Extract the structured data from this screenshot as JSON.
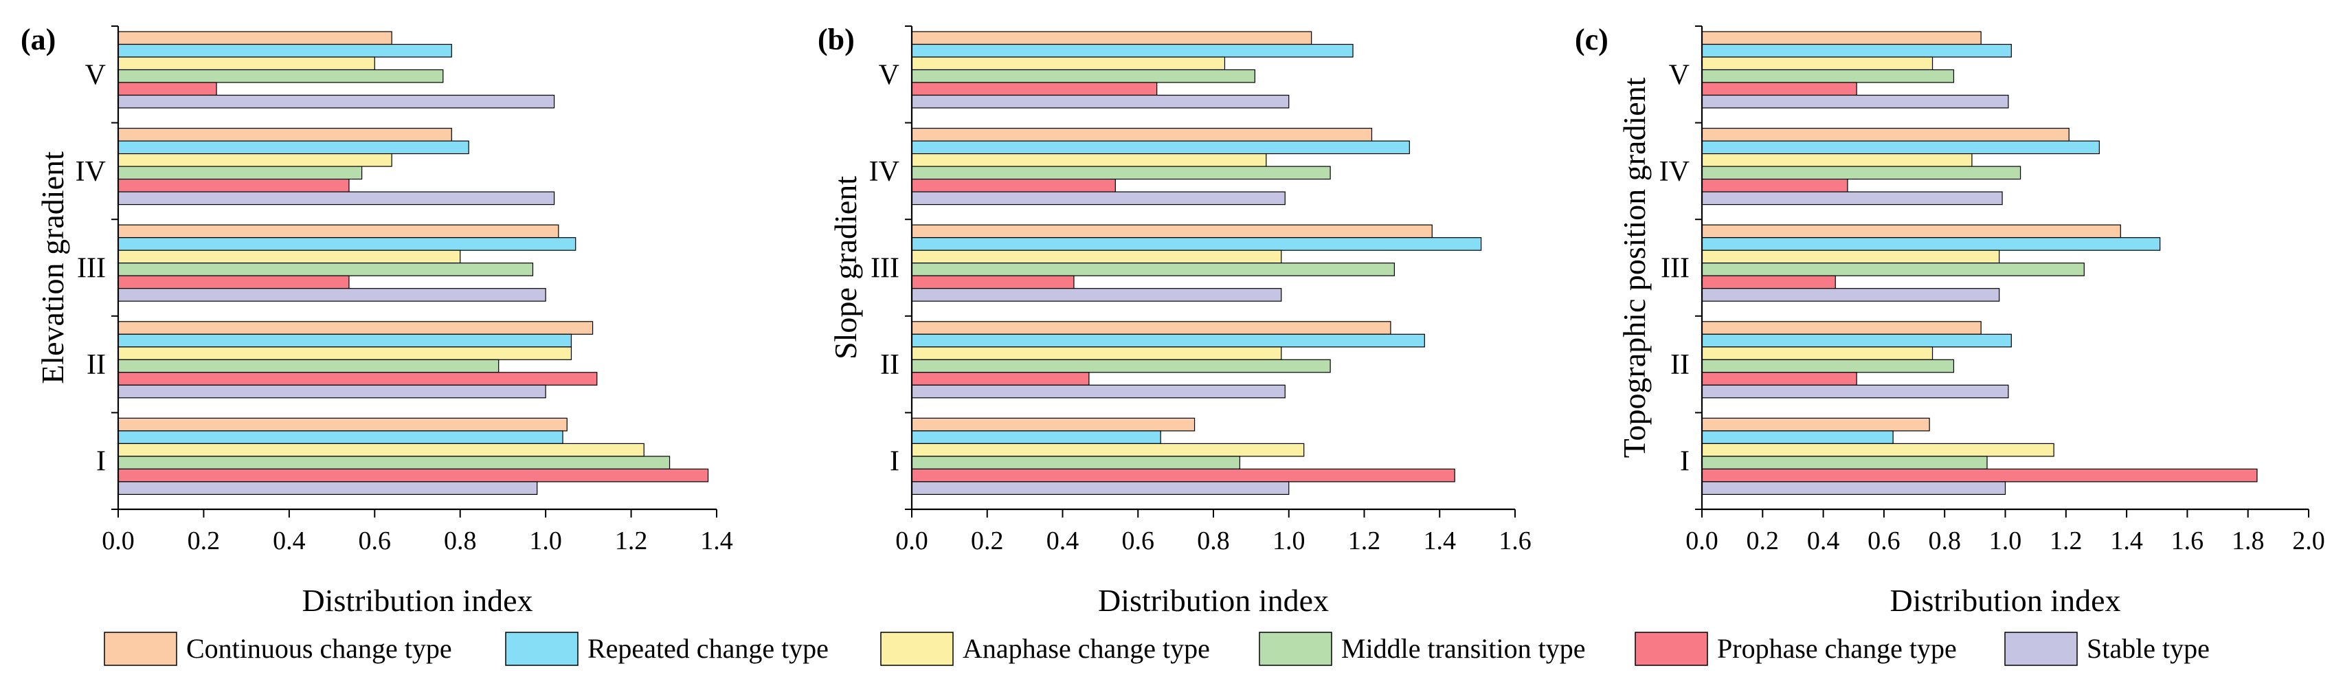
{
  "legend": [
    {
      "name": "Continuous change type",
      "color": "#FBCCA6"
    },
    {
      "name": "Repeated change type",
      "color": "#86DDF6"
    },
    {
      "name": "Anaphase change type",
      "color": "#FBF0A4"
    },
    {
      "name": "Middle transition type",
      "color": "#B7DDAD"
    },
    {
      "name": "Prophase change type",
      "color": "#F87A87"
    },
    {
      "name": "Stable type",
      "color": "#C5C4E2"
    }
  ],
  "chart_data": [
    {
      "type": "bar",
      "orientation": "horizontal",
      "panel_label": "(a)",
      "xlabel": "Distribution index",
      "ylabel": "Elevation gradient",
      "xlim": [
        0,
        1.4
      ],
      "xticks": [
        "0.0",
        "0.2",
        "0.4",
        "0.6",
        "0.8",
        "1.0",
        "1.2",
        "1.4"
      ],
      "categories": [
        "V",
        "IV",
        "III",
        "II",
        "I"
      ],
      "series": [
        {
          "name": "Continuous change type",
          "values": [
            0.64,
            0.78,
            1.03,
            1.11,
            1.05
          ]
        },
        {
          "name": "Repeated change type",
          "values": [
            0.78,
            0.82,
            1.07,
            1.06,
            1.04
          ]
        },
        {
          "name": "Anaphase change type",
          "values": [
            0.6,
            0.64,
            0.8,
            1.06,
            1.23
          ]
        },
        {
          "name": "Middle transition type",
          "values": [
            0.76,
            0.57,
            0.97,
            0.89,
            1.29
          ]
        },
        {
          "name": "Prophase change type",
          "values": [
            0.23,
            0.54,
            0.54,
            1.12,
            1.38
          ]
        },
        {
          "name": "Stable type",
          "values": [
            1.02,
            1.02,
            1.0,
            1.0,
            0.98
          ]
        }
      ]
    },
    {
      "type": "bar",
      "orientation": "horizontal",
      "panel_label": "(b)",
      "xlabel": "Distribution index",
      "ylabel": "Slope gradient",
      "xlim": [
        0,
        1.6
      ],
      "xticks": [
        "0.0",
        "0.2",
        "0.4",
        "0.6",
        "0.8",
        "1.0",
        "1.2",
        "1.4",
        "1.6"
      ],
      "categories": [
        "V",
        "IV",
        "III",
        "II",
        "I"
      ],
      "series": [
        {
          "name": "Continuous change type",
          "values": [
            1.06,
            1.22,
            1.38,
            1.27,
            0.75
          ]
        },
        {
          "name": "Repeated change type",
          "values": [
            1.17,
            1.32,
            1.51,
            1.36,
            0.66
          ]
        },
        {
          "name": "Anaphase change type",
          "values": [
            0.83,
            0.94,
            0.98,
            0.98,
            1.04
          ]
        },
        {
          "name": "Middle transition type",
          "values": [
            0.91,
            1.11,
            1.28,
            1.11,
            0.87
          ]
        },
        {
          "name": "Prophase change type",
          "values": [
            0.65,
            0.54,
            0.43,
            0.47,
            1.44
          ]
        },
        {
          "name": "Stable type",
          "values": [
            1.0,
            0.99,
            0.98,
            0.99,
            1.0
          ]
        }
      ]
    },
    {
      "type": "bar",
      "orientation": "horizontal",
      "panel_label": "(c)",
      "xlabel": "Distribution index",
      "ylabel": "Topographic position gradient",
      "xlim": [
        0,
        2.0
      ],
      "xticks": [
        "0.0",
        "0.2",
        "0.4",
        "0.6",
        "0.8",
        "1.0",
        "1.2",
        "1.4",
        "1.6",
        "1.8",
        "2.0"
      ],
      "categories": [
        "V",
        "IV",
        "III",
        "II",
        "I"
      ],
      "series": [
        {
          "name": "Continuous change type",
          "values": [
            0.92,
            1.21,
            1.38,
            0.92,
            0.75
          ]
        },
        {
          "name": "Repeated change type",
          "values": [
            1.02,
            1.31,
            1.51,
            1.02,
            0.63
          ]
        },
        {
          "name": "Anaphase change type",
          "values": [
            0.76,
            0.89,
            0.98,
            0.76,
            1.16
          ]
        },
        {
          "name": "Middle transition type",
          "values": [
            0.83,
            1.05,
            1.26,
            0.83,
            0.94
          ]
        },
        {
          "name": "Prophase change type",
          "values": [
            0.51,
            0.48,
            0.44,
            0.51,
            1.83
          ]
        },
        {
          "name": "Stable type",
          "values": [
            1.01,
            0.99,
            0.98,
            1.01,
            1.0
          ]
        }
      ]
    }
  ]
}
